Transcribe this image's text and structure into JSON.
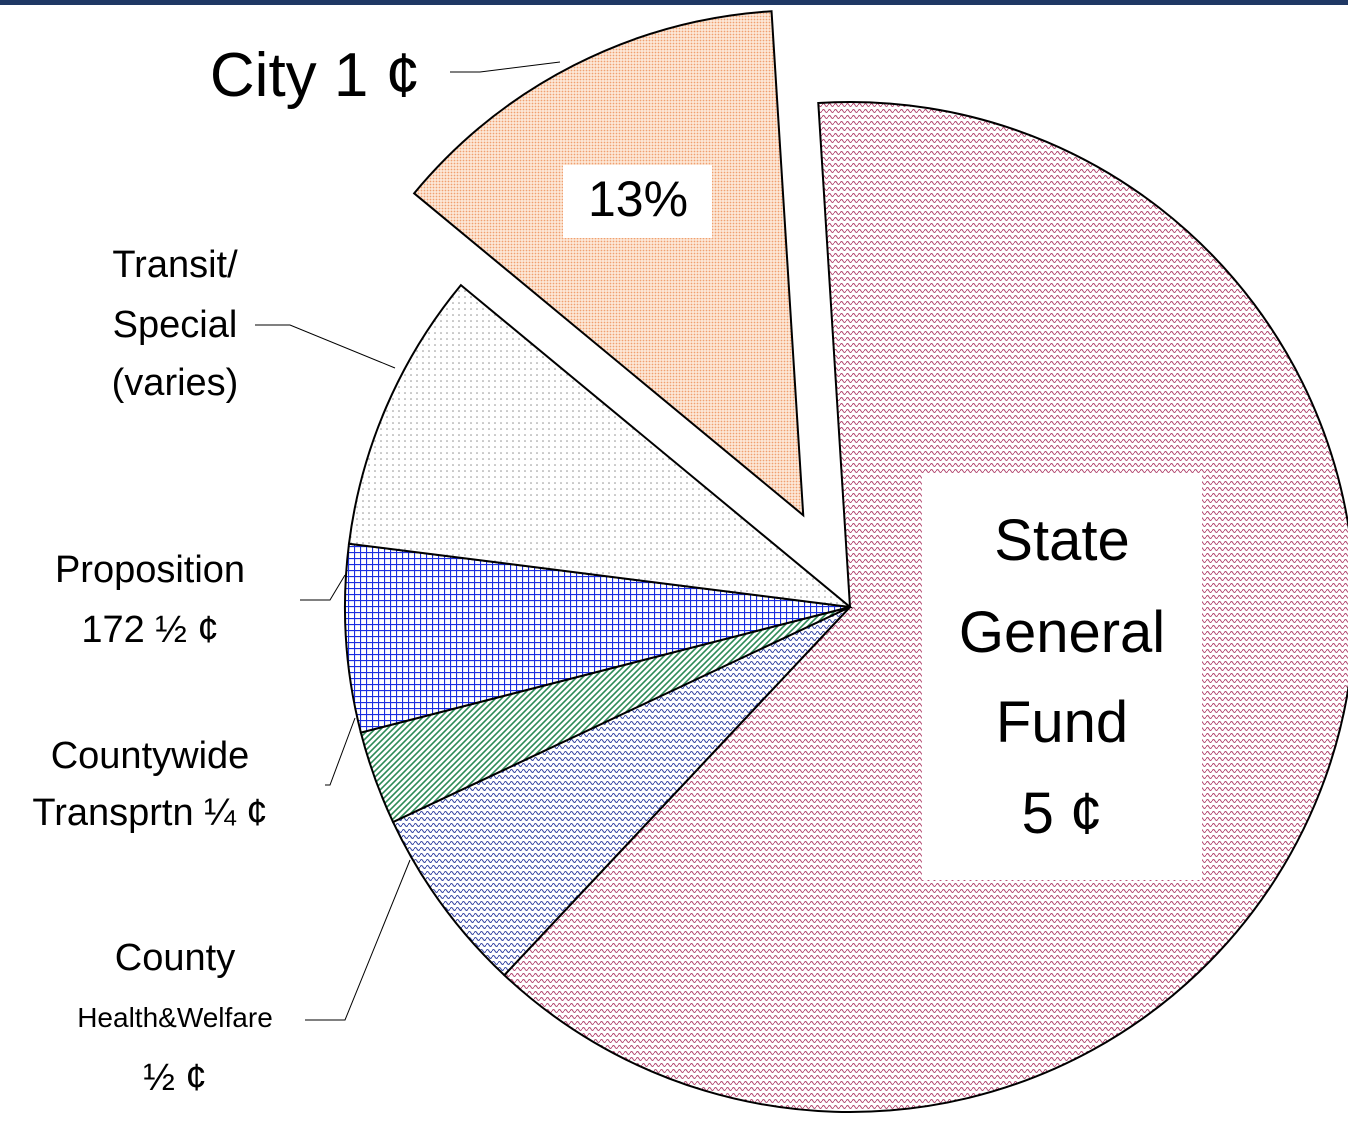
{
  "chart_data": {
    "type": "pie",
    "categories": [
      "State\nGeneral\nFund\n5 ¢",
      "County\nHealth&Welfare\n½ ¢",
      "Countywide\nTransprtn ¼ ¢",
      "Proposition\n172 ½ ¢",
      "Transit/\nSpecial\n(varies)",
      "City 1 ¢"
    ],
    "values": [
      63,
      6,
      3,
      6,
      9,
      13
    ],
    "value_labels": [
      null,
      null,
      null,
      null,
      null,
      "13%"
    ],
    "colors": [
      "#b0406a",
      "#3040a0",
      "#2e8b57",
      "#1a2ee0",
      "#909090",
      "#f0a070"
    ]
  }
}
